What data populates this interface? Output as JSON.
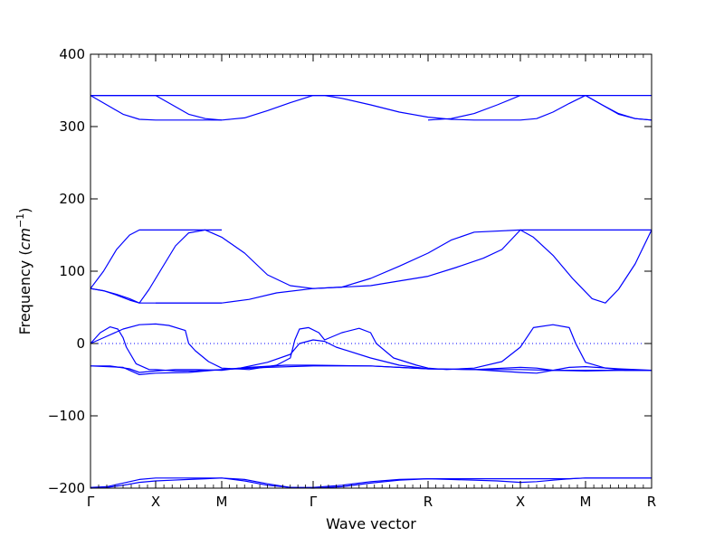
{
  "chart_data": {
    "type": "line",
    "title": "",
    "xlabel": "Wave vector",
    "ylabel": "Frequency ($cm^{-1}$)",
    "ylim": [
      -200,
      400
    ],
    "yticks": [
      400,
      300,
      200,
      100,
      0,
      -100,
      -200
    ],
    "grid": false,
    "x_labels": [
      "Γ",
      "X",
      "M",
      "Γ",
      "R",
      "X",
      "M",
      "R"
    ],
    "reference_line": {
      "y": 0,
      "style": "dotted"
    },
    "series_color": "#0000ff",
    "series": [
      {
        "values": [
          [
            0,
            343
          ],
          [
            0.12,
            343
          ],
          [
            0.24,
            343
          ],
          [
            0.39,
            343
          ],
          [
            0.48,
            343
          ],
          [
            0.66,
            343
          ],
          [
            0.75,
            343
          ],
          [
            0.87,
            343
          ],
          [
            1,
            343
          ],
          [
            1.3,
            343
          ],
          [
            1.6,
            343
          ],
          [
            1.9,
            343
          ],
          [
            2,
            343
          ],
          [
            2.5,
            343
          ],
          [
            3,
            343
          ],
          [
            3.3,
            343
          ],
          [
            3.6,
            343
          ],
          [
            3.7,
            343
          ],
          [
            3.85,
            343
          ],
          [
            4,
            343
          ],
          [
            4.2,
            343
          ],
          [
            4.3,
            343
          ],
          [
            4.4,
            343
          ],
          [
            4.5,
            343
          ],
          [
            4.6,
            343
          ],
          [
            4.8,
            343
          ],
          [
            5,
            343
          ],
          [
            5.2,
            343
          ],
          [
            5.4,
            343
          ],
          [
            5.6,
            343
          ],
          [
            5.8,
            343
          ],
          [
            6,
            343
          ],
          [
            6.5,
            343
          ],
          [
            7,
            343
          ]
        ]
      },
      {
        "values": [
          [
            0,
            343
          ],
          [
            0.25,
            330
          ],
          [
            0.5,
            317
          ],
          [
            0.75,
            310
          ],
          [
            1,
            309
          ],
          [
            1.2,
            309
          ],
          [
            1.4,
            309
          ],
          [
            1.6,
            309
          ],
          [
            1.8,
            309
          ],
          [
            2,
            309
          ]
        ]
      },
      {
        "values": [
          [
            0,
            343
          ],
          [
            0.25,
            343
          ],
          [
            0.5,
            343
          ],
          [
            0.75,
            343
          ],
          [
            1,
            343
          ],
          [
            1.25,
            330
          ],
          [
            1.5,
            317
          ],
          [
            1.75,
            311
          ],
          [
            2,
            309
          ],
          [
            2.25,
            312
          ],
          [
            2.5,
            322
          ],
          [
            2.75,
            333
          ],
          [
            3,
            343
          ],
          [
            3.1,
            343
          ],
          [
            3.25,
            339
          ],
          [
            3.5,
            330
          ],
          [
            3.75,
            320
          ],
          [
            4,
            313
          ],
          [
            4.25,
            310
          ],
          [
            4.5,
            309
          ],
          [
            5,
            309
          ],
          [
            5.25,
            311
          ],
          [
            5.5,
            320
          ],
          [
            5.75,
            332
          ],
          [
            6,
            343
          ],
          [
            6.25,
            330
          ],
          [
            6.5,
            318
          ],
          [
            6.75,
            311
          ],
          [
            7,
            309
          ]
        ]
      },
      {
        "values": [
          [
            4,
            309
          ],
          [
            4.25,
            311
          ],
          [
            4.5,
            318
          ],
          [
            4.75,
            330
          ],
          [
            5,
            343
          ],
          [
            5.25,
            343
          ],
          [
            5.5,
            343
          ],
          [
            5.75,
            343
          ],
          [
            6,
            343
          ],
          [
            6.25,
            330
          ],
          [
            6.5,
            317
          ],
          [
            6.75,
            311
          ],
          [
            7,
            309
          ]
        ]
      },
      {
        "values": [
          [
            0,
            76
          ],
          [
            0.2,
            100
          ],
          [
            0.4,
            130
          ],
          [
            0.6,
            150
          ],
          [
            0.75,
            157
          ],
          [
            1,
            157
          ],
          [
            1.2,
            157
          ],
          [
            1.4,
            157
          ],
          [
            1.6,
            157
          ],
          [
            1.8,
            157
          ],
          [
            2,
            157
          ]
        ]
      },
      {
        "values": [
          [
            0,
            76
          ],
          [
            0.2,
            73
          ],
          [
            0.4,
            67
          ],
          [
            0.6,
            60
          ],
          [
            0.75,
            56
          ],
          [
            1,
            56
          ],
          [
            1.2,
            56
          ],
          [
            1.4,
            56
          ],
          [
            1.6,
            56
          ],
          [
            1.8,
            56
          ],
          [
            2,
            56
          ]
        ]
      },
      {
        "values": [
          [
            0,
            76
          ],
          [
            0.2,
            73
          ],
          [
            0.4,
            68
          ],
          [
            0.6,
            62
          ],
          [
            0.75,
            56
          ],
          [
            0.9,
            75
          ],
          [
            1.1,
            105
          ],
          [
            1.3,
            135
          ],
          [
            1.5,
            153
          ],
          [
            1.75,
            157
          ],
          [
            2,
            147
          ],
          [
            2.25,
            125
          ],
          [
            2.5,
            95
          ],
          [
            2.75,
            80
          ],
          [
            3,
            76
          ],
          [
            3.25,
            78
          ],
          [
            3.5,
            90
          ],
          [
            3.75,
            107
          ],
          [
            4,
            125
          ],
          [
            4.25,
            143
          ],
          [
            4.5,
            154
          ],
          [
            5,
            157
          ],
          [
            5.2,
            147
          ],
          [
            5.5,
            122
          ],
          [
            5.8,
            90
          ],
          [
            6.1,
            62
          ],
          [
            6.3,
            56
          ],
          [
            6.5,
            75
          ],
          [
            6.75,
            110
          ],
          [
            7,
            157
          ]
        ]
      },
      {
        "values": [
          [
            1,
            56
          ],
          [
            1.5,
            56
          ],
          [
            2,
            56
          ],
          [
            2.3,
            61
          ],
          [
            2.6,
            70
          ],
          [
            3,
            76
          ],
          [
            3.5,
            80
          ],
          [
            4,
            93
          ],
          [
            4.3,
            105
          ],
          [
            4.6,
            118
          ],
          [
            4.8,
            130
          ],
          [
            5,
            157
          ],
          [
            5.5,
            157
          ],
          [
            6,
            157
          ],
          [
            6.5,
            157
          ],
          [
            7,
            157
          ]
        ]
      },
      {
        "values": [
          [
            0,
            0
          ],
          [
            0.15,
            15
          ],
          [
            0.3,
            23
          ],
          [
            0.42,
            20
          ],
          [
            0.5,
            8
          ],
          [
            0.55,
            -5
          ],
          [
            0.7,
            -28
          ],
          [
            0.9,
            -36
          ],
          [
            1,
            -36
          ],
          [
            1.3,
            -38
          ],
          [
            1.6,
            -38
          ],
          [
            2,
            -36
          ],
          [
            2.3,
            -33
          ],
          [
            2.7,
            -30
          ],
          [
            3,
            -30
          ],
          [
            3.5,
            -31
          ],
          [
            4,
            -35
          ],
          [
            4.5,
            -36
          ],
          [
            5,
            -36
          ],
          [
            5.5,
            -37
          ],
          [
            6,
            -37
          ],
          [
            6.5,
            -37
          ],
          [
            7,
            -37
          ]
        ]
      },
      {
        "values": [
          [
            0,
            0
          ],
          [
            0.25,
            10
          ],
          [
            0.5,
            20
          ],
          [
            0.75,
            26
          ],
          [
            1,
            27
          ],
          [
            1.2,
            25
          ],
          [
            1.45,
            18
          ],
          [
            1.5,
            0
          ],
          [
            1.6,
            -10
          ],
          [
            1.8,
            -25
          ],
          [
            2,
            -34
          ],
          [
            2.3,
            -36
          ],
          [
            2.6,
            -30
          ],
          [
            2.75,
            -20
          ],
          [
            2.8,
            5
          ],
          [
            2.85,
            20
          ],
          [
            2.95,
            22
          ],
          [
            3.05,
            15
          ],
          [
            3.1,
            5
          ],
          [
            3.25,
            15
          ],
          [
            3.4,
            21
          ],
          [
            3.5,
            15
          ],
          [
            3.55,
            0
          ],
          [
            3.7,
            -20
          ],
          [
            3.9,
            -30
          ],
          [
            4,
            -34
          ],
          [
            4.2,
            -36
          ],
          [
            4.5,
            -34
          ],
          [
            4.8,
            -25
          ],
          [
            5,
            -5
          ],
          [
            5.2,
            22
          ],
          [
            5.5,
            26
          ],
          [
            5.75,
            22
          ],
          [
            5.85,
            0
          ],
          [
            6,
            -26
          ],
          [
            6.3,
            -34
          ],
          [
            6.6,
            -37
          ],
          [
            7,
            -37
          ]
        ]
      },
      {
        "values": [
          [
            0,
            -31
          ],
          [
            0.3,
            -31
          ],
          [
            0.6,
            -35
          ],
          [
            0.75,
            -40
          ],
          [
            1,
            -38
          ],
          [
            1.3,
            -36
          ],
          [
            1.6,
            -36
          ],
          [
            2,
            -37
          ],
          [
            2.2,
            -34
          ],
          [
            2.5,
            -26
          ],
          [
            2.75,
            -15
          ],
          [
            2.85,
            0
          ],
          [
            3,
            5
          ],
          [
            3.1,
            3
          ],
          [
            3.2,
            -5
          ],
          [
            3.5,
            -20
          ],
          [
            3.75,
            -30
          ],
          [
            4,
            -35
          ],
          [
            4.5,
            -36
          ],
          [
            5,
            -40
          ],
          [
            5.25,
            -41
          ],
          [
            5.5,
            -37
          ],
          [
            5.75,
            -33
          ],
          [
            6,
            -32
          ],
          [
            6.5,
            -35
          ],
          [
            7,
            -37
          ]
        ]
      },
      {
        "values": [
          [
            0,
            -31
          ],
          [
            0.5,
            -33
          ],
          [
            0.75,
            -43
          ],
          [
            1,
            -41
          ],
          [
            1.5,
            -40
          ],
          [
            2,
            -36
          ],
          [
            2.5,
            -33
          ],
          [
            3,
            -31
          ],
          [
            3.5,
            -31
          ],
          [
            4,
            -35
          ],
          [
            4.5,
            -36
          ],
          [
            5,
            -33
          ],
          [
            5.25,
            -34
          ],
          [
            5.5,
            -37
          ],
          [
            6,
            -38
          ],
          [
            6.5,
            -37
          ],
          [
            7,
            -37
          ]
        ]
      },
      {
        "values": [
          [
            0,
            -199
          ],
          [
            0.25,
            -198
          ],
          [
            0.5,
            -193
          ],
          [
            0.75,
            -188
          ],
          [
            1,
            -186
          ],
          [
            1.25,
            -186
          ],
          [
            1.5,
            -186
          ],
          [
            1.75,
            -186
          ],
          [
            2,
            -186
          ],
          [
            2.25,
            -190
          ],
          [
            2.5,
            -196
          ],
          [
            2.75,
            -199
          ],
          [
            3,
            -199
          ],
          [
            3.25,
            -196
          ],
          [
            3.5,
            -191
          ],
          [
            3.75,
            -188
          ],
          [
            4,
            -187
          ],
          [
            4.25,
            -187
          ],
          [
            4.5,
            -187
          ],
          [
            4.75,
            -187
          ],
          [
            5,
            -187
          ],
          [
            5.25,
            -187
          ],
          [
            5.5,
            -187
          ],
          [
            5.75,
            -187
          ],
          [
            6,
            -186
          ],
          [
            6.5,
            -186
          ],
          [
            7,
            -186
          ]
        ]
      },
      {
        "values": [
          [
            0,
            -200
          ],
          [
            0.25,
            -199
          ],
          [
            0.5,
            -196
          ],
          [
            0.75,
            -192
          ],
          [
            1,
            -190
          ],
          [
            1.25,
            -189
          ],
          [
            1.5,
            -188
          ],
          [
            1.75,
            -187
          ],
          [
            2,
            -186
          ],
          [
            2.25,
            -188
          ],
          [
            2.5,
            -194
          ],
          [
            2.75,
            -199
          ],
          [
            3,
            -200
          ],
          [
            3.25,
            -198
          ],
          [
            3.5,
            -193
          ],
          [
            3.75,
            -189
          ],
          [
            4,
            -187
          ],
          [
            4.25,
            -188
          ],
          [
            4.5,
            -189
          ],
          [
            4.75,
            -190
          ],
          [
            5,
            -192
          ],
          [
            5.25,
            -191
          ],
          [
            5.5,
            -189
          ],
          [
            5.75,
            -187
          ],
          [
            6,
            -186
          ],
          [
            6.5,
            -186
          ],
          [
            7,
            -186
          ]
        ]
      }
    ]
  }
}
